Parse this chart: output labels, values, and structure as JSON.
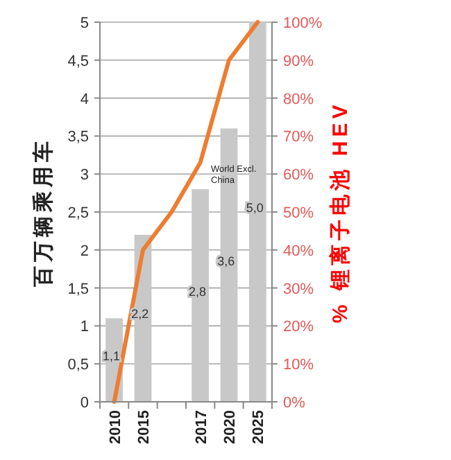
{
  "chart_data": {
    "type": "bar",
    "categories": [
      "2010",
      "2015",
      null,
      "2017",
      "2020",
      "2025"
    ],
    "ylabel": "百万辆乘用车",
    "y2label": "% 锂离子电池 HEV",
    "ylim": [
      0,
      5
    ],
    "yticks": [
      0,
      {
        "value": 0.5,
        "label": "0,5"
      },
      1,
      {
        "value": 1.5,
        "label": "1,5"
      },
      2,
      {
        "value": 2.5,
        "label": "2,5"
      },
      3,
      {
        "value": 3.5,
        "label": "3,5"
      },
      4,
      {
        "value": 4.5,
        "label": "4,5"
      },
      5
    ],
    "y2lim": [
      0,
      100
    ],
    "y2ticks": [
      {
        "value": 0,
        "label": "0%"
      },
      {
        "value": 10,
        "label": "10%"
      },
      {
        "value": 20,
        "label": "20%"
      },
      {
        "value": 30,
        "label": "30%"
      },
      {
        "value": 40,
        "label": "40%"
      },
      {
        "value": 50,
        "label": "50%"
      },
      {
        "value": 60,
        "label": "60%"
      },
      {
        "value": 70,
        "label": "70%"
      },
      {
        "value": 80,
        "label": "80%"
      },
      {
        "value": 90,
        "label": "90%"
      },
      {
        "value": 100,
        "label": "100%"
      }
    ],
    "grid": "y",
    "annotations": [
      "World Excl. China"
    ],
    "series": [
      {
        "color": "#c8c8c8",
        "values": [
          1.1,
          2.2,
          null,
          2.8,
          3.6,
          5.0
        ],
        "value_labels": [
          "1,1",
          "2,2",
          null,
          "2,8",
          "3,6",
          "5,0"
        ]
      },
      {
        "type": "line",
        "axis": "y2",
        "color": "#ed7d31",
        "values": [
          0,
          40,
          50,
          63,
          90,
          100
        ]
      }
    ]
  }
}
